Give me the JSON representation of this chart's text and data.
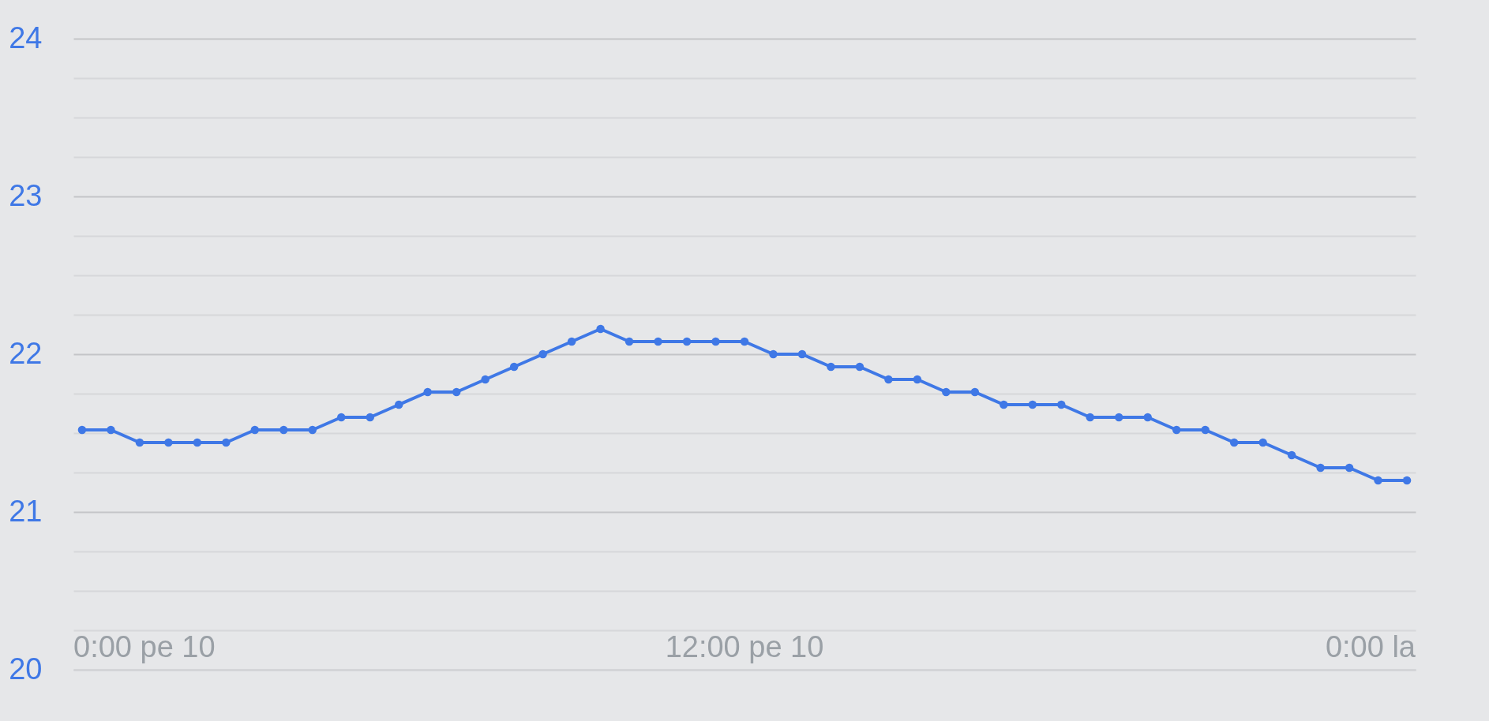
{
  "chart_data": {
    "type": "line",
    "categories": [
      null,
      null,
      null,
      null,
      null,
      null,
      null,
      null,
      null,
      null,
      null,
      null,
      null,
      null,
      null,
      null,
      null,
      null,
      null,
      null,
      null,
      null,
      null,
      null,
      null,
      null,
      null,
      null,
      null,
      null,
      null,
      null,
      null,
      null,
      null,
      null,
      null,
      null,
      null,
      null,
      null,
      null,
      null,
      null,
      null,
      null,
      null
    ],
    "series": [
      {
        "color": "#3f78e6",
        "values": [
          21.52,
          21.52,
          21.44,
          21.44,
          21.44,
          21.44,
          21.52,
          21.52,
          21.52,
          21.6,
          21.6,
          21.68,
          21.76,
          21.76,
          21.84,
          21.92,
          22.0,
          22.08,
          22.16,
          22.08,
          22.08,
          22.08,
          22.08,
          22.08,
          22.0,
          22.0,
          21.92,
          21.92,
          21.84,
          21.84,
          21.76,
          21.76,
          21.68,
          21.68,
          21.68,
          21.6,
          21.6,
          21.6,
          21.52,
          21.52,
          21.44,
          21.44,
          21.36,
          21.28,
          21.28,
          21.2,
          21.2
        ]
      }
    ],
    "ylim": [
      20,
      24
    ],
    "yticks": [
      20,
      {
        "value": 20.25,
        "label": null
      },
      {
        "value": 20.5,
        "label": null
      },
      {
        "value": 20.75,
        "label": null
      },
      21,
      {
        "value": 21.25,
        "label": null
      },
      {
        "value": 21.5,
        "label": null
      },
      {
        "value": 21.75,
        "label": null
      },
      22,
      {
        "value": 22.25,
        "label": null
      },
      {
        "value": 22.5,
        "label": null
      },
      {
        "value": 22.75,
        "label": null
      },
      23,
      {
        "value": 23.25,
        "label": null
      },
      {
        "value": 23.5,
        "label": null
      },
      {
        "value": 23.75,
        "label": null
      },
      24
    ],
    "grid": "y",
    "marker": "circle",
    "line_style": "solid",
    "annotations": [
      "0:00 pe 10",
      "12:00 pe 10",
      "0:00 la"
    ]
  }
}
